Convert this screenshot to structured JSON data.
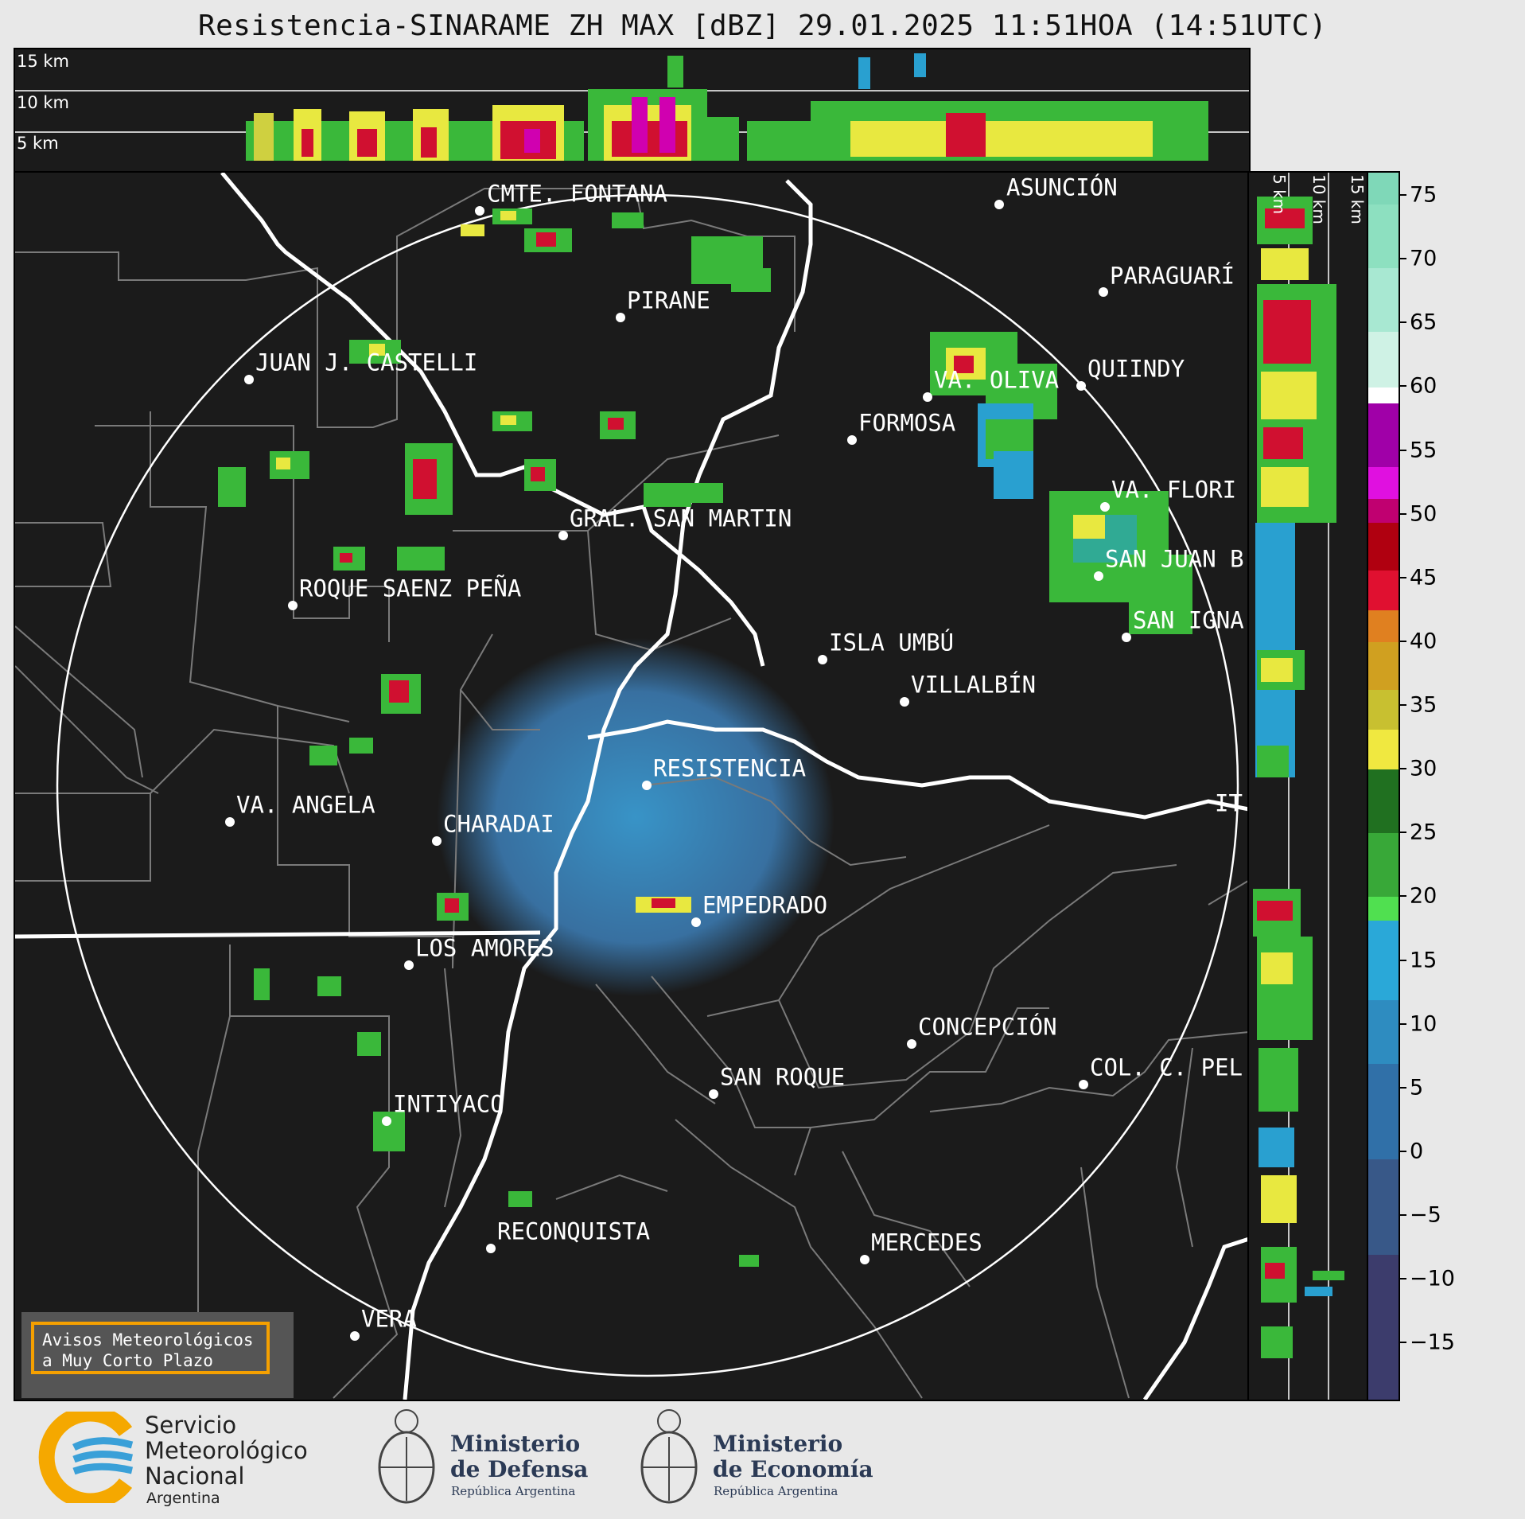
{
  "title": "Resistencia-SINARAME ZH MAX [dBZ] 29.01.2025 11:51HOA (14:51UTC)",
  "altitude_labels": {
    "top": [
      "15 km",
      "10 km",
      "5 km"
    ],
    "side": [
      "5 km",
      "10 km",
      "15 km"
    ]
  },
  "colorbar": {
    "unit": "dBZ",
    "ticks": [
      "75",
      "70",
      "65",
      "60",
      "55",
      "50",
      "45",
      "40",
      "35",
      "30",
      "25",
      "20",
      "15",
      "10",
      "5",
      "0",
      "−5",
      "−10",
      "−15"
    ],
    "range": [
      -20,
      77
    ]
  },
  "cities": [
    {
      "name": "CMTE. FONTANA"
    },
    {
      "name": "ASUNCIÓN"
    },
    {
      "name": "PARAGUARÍ"
    },
    {
      "name": "PIRANE"
    },
    {
      "name": "JUAN J. CASTELLI"
    },
    {
      "name": "VA. OLIVA"
    },
    {
      "name": "QUIINDY"
    },
    {
      "name": "FORMOSA"
    },
    {
      "name": "VA. FLORI"
    },
    {
      "name": "GRAL. SAN MARTIN"
    },
    {
      "name": "SAN JUAN B"
    },
    {
      "name": "ROQUE SAENZ PEÑA"
    },
    {
      "name": "SAN IGNA"
    },
    {
      "name": "ISLA UMBÚ"
    },
    {
      "name": "VILLALBÍN"
    },
    {
      "name": "RESISTENCIA"
    },
    {
      "name": "VA. ANGELA"
    },
    {
      "name": "CHARADAI"
    },
    {
      "name": "IT"
    },
    {
      "name": "EMPEDRADO"
    },
    {
      "name": "LOS AMORES"
    },
    {
      "name": "CONCEPCIÓN"
    },
    {
      "name": "COL. C. PEL"
    },
    {
      "name": "SAN ROQUE"
    },
    {
      "name": "INTIYACO"
    },
    {
      "name": "RECONQUISTA"
    },
    {
      "name": "MERCEDES"
    },
    {
      "name": "VERA"
    }
  ],
  "avisos": {
    "line1": "Avisos Meteorológicos",
    "line2": "a Muy Corto Plazo"
  },
  "footer": {
    "smn": {
      "line1": "Servicio",
      "line2": "Meteorológico",
      "line3": "Nacional",
      "line4": "Argentina"
    },
    "defensa": {
      "line1": "Ministerio",
      "line2": "de Defensa",
      "line3": "República Argentina"
    },
    "economia": {
      "line1": "Ministerio",
      "line2": "de Economía",
      "line3": "República Argentina"
    }
  },
  "colors": {
    "background": "#1b1b1b",
    "borders": "#ffffff",
    "divisions": "#7a7a7a",
    "accent": "#f5a000"
  }
}
